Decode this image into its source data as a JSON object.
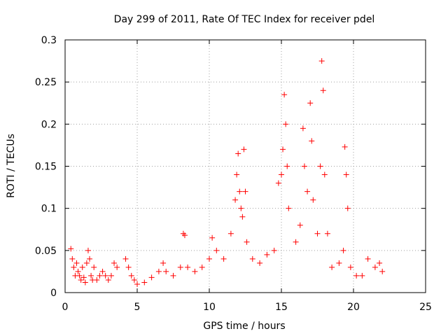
{
  "chart_data": {
    "type": "scatter",
    "title": "Day 299 of 2011, Rate Of TEC Index for receiver pdel",
    "xlabel": "GPS time / hours",
    "ylabel": "ROTI / TECUs",
    "xlim": [
      0,
      25
    ],
    "ylim": [
      0,
      0.3
    ],
    "xticks": [
      "0",
      "5",
      "10",
      "15",
      "20",
      "25"
    ],
    "yticks": [
      "0",
      "0.05",
      "0.1",
      "0.15",
      "0.2",
      "0.25",
      "0.3"
    ],
    "grid": true,
    "marker": "+",
    "color": "#ff0000",
    "series": [
      {
        "points": [
          [
            0.4,
            0.052
          ],
          [
            0.5,
            0.04
          ],
          [
            0.6,
            0.03
          ],
          [
            0.7,
            0.02
          ],
          [
            0.8,
            0.035
          ],
          [
            0.9,
            0.025
          ],
          [
            1.0,
            0.02
          ],
          [
            1.1,
            0.015
          ],
          [
            1.2,
            0.03
          ],
          [
            1.3,
            0.018
          ],
          [
            1.4,
            0.012
          ],
          [
            1.5,
            0.035
          ],
          [
            1.6,
            0.05
          ],
          [
            1.7,
            0.04
          ],
          [
            1.8,
            0.02
          ],
          [
            1.9,
            0.015
          ],
          [
            2.0,
            0.03
          ],
          [
            2.2,
            0.015
          ],
          [
            2.4,
            0.02
          ],
          [
            2.6,
            0.025
          ],
          [
            2.8,
            0.02
          ],
          [
            3.0,
            0.015
          ],
          [
            3.2,
            0.02
          ],
          [
            3.4,
            0.035
          ],
          [
            3.6,
            0.03
          ],
          [
            4.2,
            0.04
          ],
          [
            4.4,
            0.03
          ],
          [
            4.6,
            0.02
          ],
          [
            4.8,
            0.015
          ],
          [
            5.0,
            0.01
          ],
          [
            5.5,
            0.012
          ],
          [
            6.0,
            0.018
          ],
          [
            6.5,
            0.025
          ],
          [
            6.8,
            0.035
          ],
          [
            7.0,
            0.025
          ],
          [
            7.5,
            0.02
          ],
          [
            8.0,
            0.03
          ],
          [
            8.2,
            0.07
          ],
          [
            8.3,
            0.068
          ],
          [
            8.5,
            0.03
          ],
          [
            9.0,
            0.025
          ],
          [
            9.5,
            0.03
          ],
          [
            10.0,
            0.04
          ],
          [
            10.2,
            0.065
          ],
          [
            10.5,
            0.05
          ],
          [
            11.0,
            0.04
          ],
          [
            11.5,
            0.07
          ],
          [
            11.8,
            0.11
          ],
          [
            11.9,
            0.14
          ],
          [
            12.0,
            0.165
          ],
          [
            12.1,
            0.12
          ],
          [
            12.2,
            0.1
          ],
          [
            12.3,
            0.09
          ],
          [
            12.4,
            0.17
          ],
          [
            12.5,
            0.12
          ],
          [
            12.6,
            0.06
          ],
          [
            13.0,
            0.04
          ],
          [
            13.5,
            0.035
          ],
          [
            14.0,
            0.045
          ],
          [
            14.5,
            0.05
          ],
          [
            14.8,
            0.13
          ],
          [
            15.0,
            0.14
          ],
          [
            15.1,
            0.17
          ],
          [
            15.2,
            0.235
          ],
          [
            15.3,
            0.2
          ],
          [
            15.4,
            0.15
          ],
          [
            15.5,
            0.1
          ],
          [
            16.0,
            0.06
          ],
          [
            16.3,
            0.08
          ],
          [
            16.5,
            0.195
          ],
          [
            16.6,
            0.15
          ],
          [
            16.8,
            0.12
          ],
          [
            17.0,
            0.225
          ],
          [
            17.1,
            0.18
          ],
          [
            17.2,
            0.11
          ],
          [
            17.5,
            0.07
          ],
          [
            17.7,
            0.15
          ],
          [
            17.8,
            0.275
          ],
          [
            17.9,
            0.24
          ],
          [
            18.0,
            0.14
          ],
          [
            18.2,
            0.07
          ],
          [
            18.5,
            0.03
          ],
          [
            19.0,
            0.035
          ],
          [
            19.3,
            0.05
          ],
          [
            19.4,
            0.173
          ],
          [
            19.5,
            0.14
          ],
          [
            19.6,
            0.1
          ],
          [
            19.8,
            0.03
          ],
          [
            20.2,
            0.02
          ],
          [
            20.6,
            0.02
          ],
          [
            21.0,
            0.04
          ],
          [
            21.5,
            0.03
          ],
          [
            21.8,
            0.035
          ],
          [
            22.0,
            0.025
          ]
        ]
      }
    ]
  }
}
